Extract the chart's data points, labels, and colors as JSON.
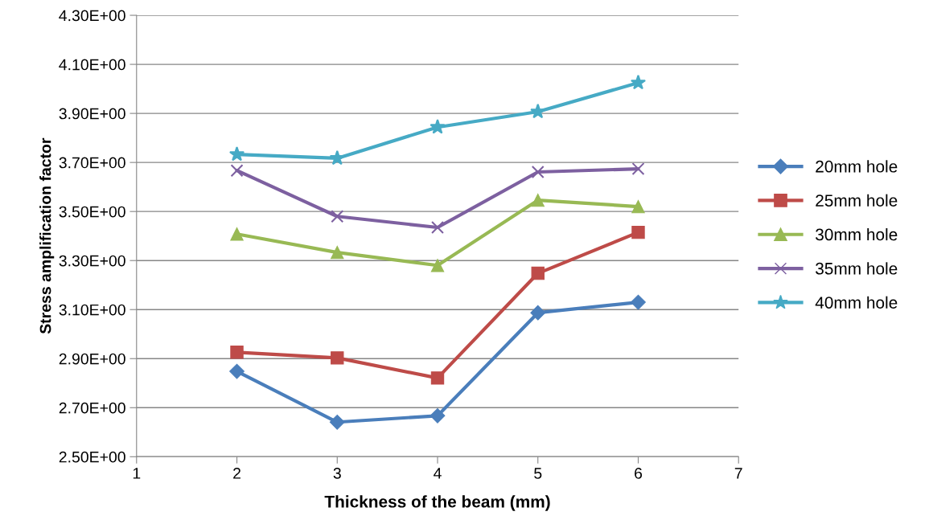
{
  "chart_data": {
    "type": "line",
    "xlabel": "Thickness of the beam (mm)",
    "ylabel": "Stress amplification factor",
    "xlim": [
      1,
      7
    ],
    "xticks": [
      1,
      2,
      3,
      4,
      5,
      6,
      7
    ],
    "ylim": [
      2.5,
      4.3
    ],
    "yticks": [
      {
        "value": 2.5,
        "label": "2.50E+00"
      },
      {
        "value": 2.7,
        "label": "2.70E+00"
      },
      {
        "value": 2.9,
        "label": "2.90E+00"
      },
      {
        "value": 3.1,
        "label": "3.10E+00"
      },
      {
        "value": 3.3,
        "label": "3.30E+00"
      },
      {
        "value": 3.5,
        "label": "3.50E+00"
      },
      {
        "value": 3.7,
        "label": "3.70E+00"
      },
      {
        "value": 3.9,
        "label": "3.90E+00"
      },
      {
        "value": 4.1,
        "label": "4.10E+00"
      },
      {
        "value": 4.3,
        "label": "4.30E+00"
      }
    ],
    "x": [
      2,
      3,
      4,
      5,
      6
    ],
    "grid": "y",
    "legend": "right",
    "line_style": "solid",
    "series": [
      {
        "name": "20mm hole",
        "color": "#4a7ebb",
        "marker": "diamond",
        "values": [
          2.848,
          2.641,
          2.667,
          3.087,
          3.13
        ]
      },
      {
        "name": "25mm hole",
        "color": "#be4b48",
        "marker": "square",
        "values": [
          2.926,
          2.903,
          2.821,
          3.248,
          3.415
        ]
      },
      {
        "name": "30mm hole",
        "color": "#98b954",
        "marker": "triangle",
        "values": [
          3.408,
          3.333,
          3.28,
          3.546,
          3.52
        ]
      },
      {
        "name": "35mm hole",
        "color": "#7d60a0",
        "marker": "cross",
        "values": [
          3.667,
          3.48,
          3.435,
          3.661,
          3.674
        ]
      },
      {
        "name": "40mm hole",
        "color": "#46aac5",
        "marker": "star",
        "values": [
          3.733,
          3.717,
          3.844,
          3.907,
          4.025
        ]
      }
    ]
  }
}
